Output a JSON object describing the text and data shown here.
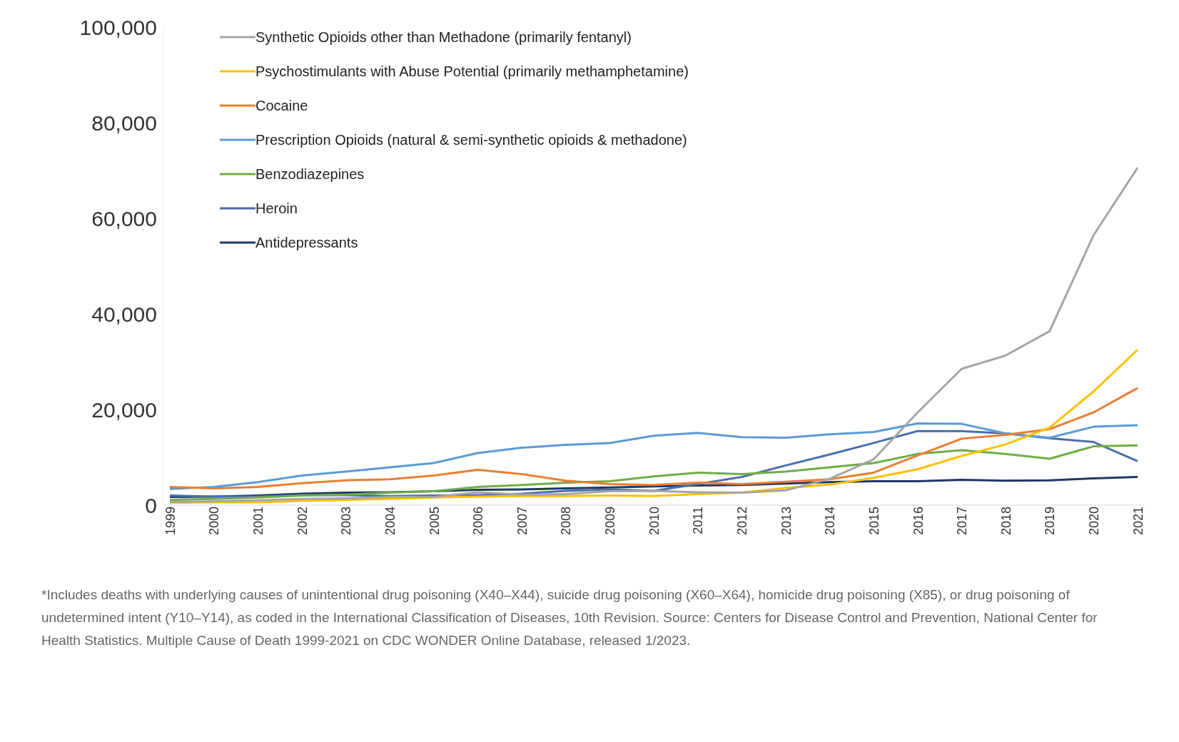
{
  "chart_data": {
    "type": "line",
    "categories": [
      "1999",
      "2000",
      "2001",
      "2002",
      "2003",
      "2004",
      "2005",
      "2006",
      "2007",
      "2008",
      "2009",
      "2010",
      "2011",
      "2012",
      "2013",
      "2014",
      "2015",
      "2016",
      "2017",
      "2018",
      "2019",
      "2020",
      "2021"
    ],
    "series": [
      {
        "name": "Synthetic Opioids other than Methadone (primarily fentanyl)",
        "color": "#a5a5a5",
        "values": [
          700,
          800,
          1000,
          1300,
          1400,
          1700,
          1700,
          2700,
          2200,
          2300,
          2900,
          3000,
          2700,
          2600,
          3100,
          5500,
          9600,
          19400,
          28500,
          31300,
          36400,
          56500,
          70600
        ]
      },
      {
        "name": "Psychostimulants with Abuse Potential (primarily methamphetamine)",
        "color": "#ffc000",
        "values": [
          500,
          600,
          600,
          900,
          1100,
          1300,
          1600,
          1800,
          1900,
          1900,
          2000,
          1900,
          2300,
          2600,
          3600,
          4300,
          5700,
          7500,
          10300,
          12700,
          16200,
          23800,
          32500
        ]
      },
      {
        "name": "Cocaine",
        "color": "#ed7d31",
        "values": [
          3800,
          3500,
          3800,
          4600,
          5200,
          5400,
          6200,
          7400,
          6500,
          5100,
          4400,
          4200,
          4700,
          4400,
          4900,
          5400,
          6800,
          10400,
          13900,
          14700,
          15900,
          19400,
          24500
        ]
      },
      {
        "name": "Prescription Opioids (natural & semi-synthetic opioids & methadone)",
        "color": "#5b9bd5",
        "values": [
          3400,
          3800,
          4800,
          6200,
          7000,
          7900,
          8800,
          10900,
          12000,
          12600,
          13000,
          14500,
          15100,
          14200,
          14100,
          14800,
          15300,
          17100,
          17000,
          15000,
          14100,
          16400,
          16700
        ]
      },
      {
        "name": "Benzodiazepines",
        "color": "#70ad47",
        "values": [
          1100,
          1300,
          1600,
          2000,
          2200,
          2600,
          2900,
          3800,
          4200,
          4700,
          5000,
          6000,
          6800,
          6500,
          7000,
          7900,
          8800,
          10700,
          11500,
          10700,
          9700,
          12300,
          12500
        ]
      },
      {
        "name": "Heroin",
        "color": "#4a6fa8",
        "values": [
          2000,
          1800,
          1800,
          2100,
          2100,
          1900,
          2000,
          2100,
          2400,
          3000,
          3300,
          3000,
          4400,
          5900,
          8300,
          10600,
          13000,
          15500,
          15500,
          15000,
          14000,
          13200,
          9200
        ]
      },
      {
        "name": "Antidepressants",
        "color": "#1f3864",
        "values": [
          1700,
          1800,
          2000,
          2400,
          2600,
          2700,
          2900,
          3200,
          3300,
          3500,
          3700,
          3900,
          4100,
          4200,
          4500,
          4800,
          5000,
          5000,
          5300,
          5100,
          5200,
          5600,
          5900
        ]
      }
    ],
    "ylim": [
      0,
      100000
    ],
    "yticks": [
      0,
      {
        "value": 20000,
        "label": "20,000"
      },
      {
        "value": 40000,
        "label": "40,000"
      },
      {
        "value": 60000,
        "label": "60,000"
      },
      {
        "value": 80000,
        "label": "80,000"
      },
      {
        "value": 100000,
        "label": "100,000"
      }
    ],
    "grid": false,
    "legend": "top left",
    "marker": "none",
    "line_style": "solid",
    "annotations": [
      "*Includes deaths with underlying causes of unintentional drug poisoning (X40–X44), suicide drug poisoning (X60–X64), homicide drug poisoning (X85), or drug poisoning of undetermined intent (Y10–Y14), as coded in the International Classification of Diseases, 10th Revision. Source: Centers for Disease Control and Prevention, National Center for Health Statistics. Multiple Cause of Death 1999-2021 on CDC WONDER Online Database, released 1/2023."
    ]
  }
}
